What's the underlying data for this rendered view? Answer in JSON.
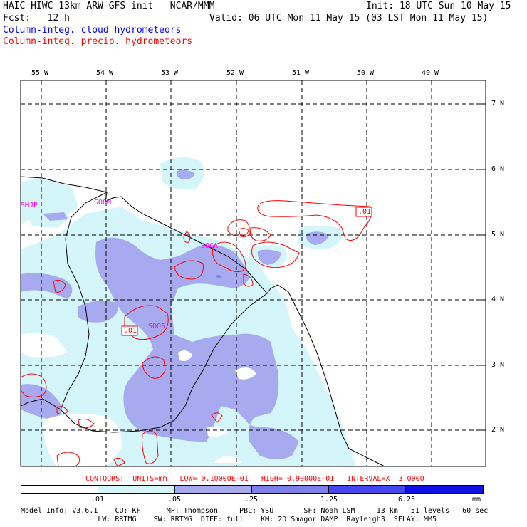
{
  "header": {
    "line1_left": "HAIC-HIWC 13km ARW-GFS init   NCAR/MMM",
    "line1_right": "Init: 18 UTC Sun 10 May 15",
    "line2_left": "Fcst:   12 h",
    "line2_right": "Valid: 06 UTC Mon 11 May 15 (03 LST Mon 11 May 15)",
    "line3": "Column-integ. cloud hydrometeors",
    "line4": "Column-integ. precip. hydrometeors"
  },
  "colors": {
    "cloud_text": "#0000ff",
    "precip_text": "#ff0000",
    "shade1": "#d4f6fb",
    "shade2": "#a8aaf0",
    "shade3": "#7e80ea",
    "shade4": "#4646f0",
    "shade5": "#1010e6",
    "station": "#ff00ff",
    "contour": "#ff0000"
  },
  "map": {
    "lon_labels": [
      "55 W",
      "54 W",
      "53 W",
      "52 W",
      "51 W",
      "50 W",
      "49 W"
    ],
    "lat_labels": [
      "7 N",
      "6 N",
      "5 N",
      "4 N",
      "3 N",
      "2 N"
    ],
    "stations": [
      "SMJP",
      "SOOM",
      "SOCA",
      "SOOS"
    ],
    "contour_labels": [
      ".01",
      ".01"
    ]
  },
  "footer": {
    "contours_line": "CONTOURS:  UNITS=mm   LOW= 0.10000E-01   HIGH= 0.90000E-01   INTERVAL=X  3.0000",
    "colorbar_labels": [
      ".01",
      ".05",
      ".25",
      "1.25",
      "6.25"
    ],
    "units": "mm",
    "model_line1": "Model Info: V3.6.1    CU: KF      MP: Thompson     PBL: YSU       SF: Noah LSM     13 km   51 levels   60 sec",
    "model_line2": "                  LW: RRTMG    SW: RRTMG  DIFF: full    KM: 2D Smagor DAMP: Rayleigh3  SFLAY: MM5"
  }
}
